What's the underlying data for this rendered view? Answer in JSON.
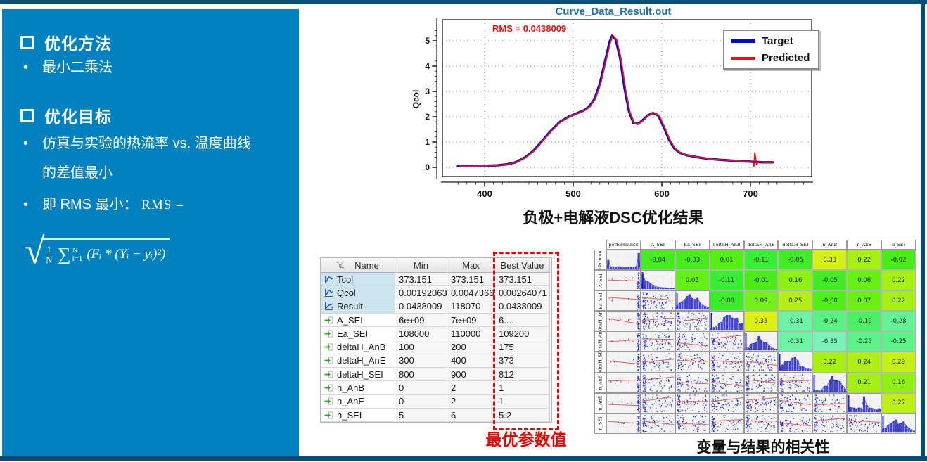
{
  "colors": {
    "panel_blue": "#0182be",
    "frame_navy": "#0c4d74",
    "accent_red": "#ea0000",
    "target_blue": "#0011cc",
    "predicted_red": "#ee1111",
    "chart_title_blue": "#1a6fae"
  },
  "slide": {
    "left_panel": {
      "heading1": "优化方法",
      "bullet1": "最小二乘法",
      "heading2": "优化目标",
      "bullet2_line1": "仿真与实验的热流率 vs. 温度曲线",
      "bullet2_line2": "的差值最小",
      "bullet3_prefix": "即 RMS 最小：",
      "bullet3_rms": "RMS =",
      "formula": {
        "frac_num": "1",
        "frac_den": "N",
        "sum_sym": "∑",
        "sum_sup": "N",
        "sum_sub": "i=1",
        "body": "(Fᵢ * (Yᵢ − yᵢ)²)"
      }
    },
    "captions": {
      "chart_caption": "负极+电解液DSC优化结果",
      "table_caption": "最优参数值",
      "matrix_caption": "变量与结果的相关性"
    }
  },
  "chart": {
    "title": "Curve_Data_Result.out",
    "rms_label": "RMS = 0.0438009",
    "ylabel": "Qcol",
    "legend": [
      {
        "label": "Target",
        "color": "#0011cc"
      },
      {
        "label": "Predicted",
        "color": "#ee1111"
      }
    ]
  },
  "table": {
    "columns": [
      "Name",
      "Min",
      "Max",
      "Best Value"
    ],
    "rows": [
      {
        "icon": "curve",
        "name": "Tcol",
        "min": "373.151",
        "max": "373.151",
        "best": "373.151",
        "shaded": true
      },
      {
        "icon": "curve",
        "name": "Qcol",
        "min": "0.00192063",
        "max": "0.0047366",
        "best": "0.00264071",
        "shaded": true
      },
      {
        "icon": "result",
        "name": "Result",
        "min": "0.0438009",
        "max": "118070",
        "best": "0.0438009",
        "shaded": true
      },
      {
        "icon": "param",
        "name": "A_SEI",
        "min": "6e+09",
        "max": "7e+09",
        "best": "6....",
        "shaded": false
      },
      {
        "icon": "param",
        "name": "Ea_SEI",
        "min": "108000",
        "max": "110000",
        "best": "109200",
        "shaded": false
      },
      {
        "icon": "param",
        "name": "deltaH_AnB",
        "min": "100",
        "max": "200",
        "best": "175",
        "shaded": false
      },
      {
        "icon": "param",
        "name": "deltaH_AnE",
        "min": "300",
        "max": "400",
        "best": "373",
        "shaded": false
      },
      {
        "icon": "param",
        "name": "deltaH_SEI",
        "min": "800",
        "max": "900",
        "best": "812",
        "shaded": false
      },
      {
        "icon": "param",
        "name": "n_AnB",
        "min": "0",
        "max": "2",
        "best": "1",
        "shaded": false
      },
      {
        "icon": "param",
        "name": "n_AnE",
        "min": "0",
        "max": "2",
        "best": "1",
        "shaded": false
      },
      {
        "icon": "param",
        "name": "n_SEI",
        "min": "5",
        "max": "6",
        "best": "5.2",
        "shaded": false
      }
    ]
  },
  "chart_data": [
    {
      "type": "line",
      "title": "Curve_Data_Result.out",
      "xlabel": "",
      "ylabel": "Qcol",
      "annotation": "RMS = 0.0438009",
      "x_ticks": [
        400,
        500,
        600,
        700
      ],
      "y_ticks": [
        0,
        1,
        2,
        3,
        4,
        5
      ],
      "xlim": [
        352,
        769
      ],
      "ylim": [
        -0.36,
        5.83
      ],
      "grid": "dotted",
      "legend_position": "top-right",
      "series": [
        {
          "name": "Target",
          "color": "#0011cc",
          "x": [
            370,
            385,
            400,
            415,
            425,
            435,
            445,
            455,
            465,
            475,
            485,
            495,
            505,
            512,
            518,
            524,
            530,
            536,
            541,
            544,
            548,
            553,
            558,
            563,
            568,
            573,
            578,
            584,
            590,
            596,
            602,
            608,
            614,
            620,
            628,
            640,
            652,
            665,
            678,
            690,
            698,
            702,
            704,
            706,
            709,
            715,
            725
          ],
          "y": [
            0.05,
            0.05,
            0.06,
            0.08,
            0.12,
            0.2,
            0.38,
            0.65,
            1.05,
            1.45,
            1.8,
            2.0,
            2.15,
            2.25,
            2.4,
            2.7,
            3.3,
            4.2,
            4.95,
            5.2,
            5.05,
            4.3,
            3.1,
            2.2,
            1.75,
            1.72,
            1.85,
            2.05,
            2.15,
            2.05,
            1.6,
            1.1,
            0.75,
            0.58,
            0.48,
            0.4,
            0.34,
            0.3,
            0.27,
            0.24,
            0.23,
            0.22,
            0.22,
            0.21,
            0.21,
            0.2,
            0.2
          ]
        },
        {
          "name": "Predicted",
          "color": "#ee1111",
          "overlaps_target": true,
          "spike_x": [
            700,
            702,
            703,
            704,
            706,
            708
          ],
          "spike_y": [
            0.23,
            0.2,
            0.05,
            0.58,
            0.1,
            0.22
          ]
        }
      ]
    },
    {
      "type": "heatmap",
      "title": "变量与结果的相关性",
      "variables": [
        "performance",
        "A_SEI",
        "Ea_SEI",
        "deltaH_AnB",
        "deltaH_AnE",
        "deltaH_SEI",
        "n_AnB",
        "n_AnE",
        "n_SEI"
      ],
      "layout": "scatter-matrix: diagonal histograms, lower scatter plots, upper correlation values",
      "upper_triangle_correlations": [
        [
          "-0.04",
          "-0.03",
          "0.01",
          "-0.11",
          "-0.05",
          "0.33",
          "0.22",
          "-0.02"
        ],
        [
          "0.05",
          "-0.11",
          "-0.01",
          "0.16",
          "-0.05",
          "0.06",
          "0.22"
        ],
        [
          "-0.08",
          "0.09",
          "0.25",
          "-0.00",
          "0.07",
          "0.22"
        ],
        [
          "0.35",
          "-0.31",
          "-0.24",
          "-0.19",
          "-0.28"
        ],
        [
          "-0.31",
          "-0.35",
          "-0.25",
          "-0.25"
        ],
        [
          "0.22",
          "0.24",
          "0.29"
        ],
        [
          "0.21",
          "0.16"
        ],
        [
          "0.27"
        ],
        []
      ]
    }
  ]
}
